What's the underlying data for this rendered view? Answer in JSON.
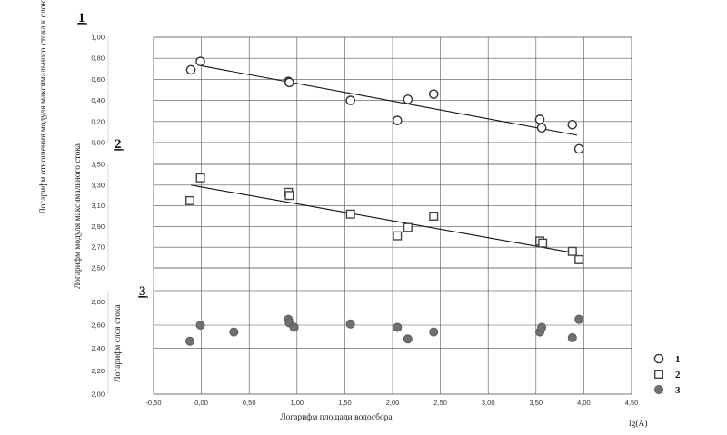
{
  "chart_data": {
    "type": "scatter",
    "xlabel": "Логарифм площади водосбора",
    "x_unit_label": "lg(A)",
    "xlim": [
      -0.5,
      4.5
    ],
    "x_ticks": [
      "-0,50",
      "0,00",
      "0,50",
      "1,00",
      "1,50",
      "2,00",
      "2,50",
      "3,00",
      "3,50",
      "4,00",
      "4,50"
    ],
    "grid": true,
    "legend_position": "bottom-right",
    "panels": [
      {
        "number": "1",
        "ylabel": "Логарифм отношения модуля максимального стока к слою стока",
        "ylim": [
          0,
          1
        ],
        "y_ticks": [
          "0,00",
          "0,20",
          "0,40",
          "0,60",
          "0,80",
          "1,00"
        ],
        "series": [
          {
            "marker": "circle-open",
            "points": [
              [
                -0.11,
                0.69
              ],
              [
                -0.01,
                0.77
              ],
              [
                0.91,
                0.58
              ],
              [
                0.92,
                0.57
              ],
              [
                1.56,
                0.4
              ],
              [
                2.05,
                0.21
              ],
              [
                2.16,
                0.41
              ],
              [
                2.43,
                0.46
              ],
              [
                3.54,
                0.22
              ],
              [
                3.56,
                0.14
              ],
              [
                3.88,
                0.17
              ],
              [
                3.95,
                -0.06
              ]
            ],
            "trend": [
              [
                -0.01,
                0.73
              ],
              [
                3.93,
                0.07
              ]
            ]
          }
        ]
      },
      {
        "number": "2",
        "ylabel": "Логарифм модуля максимального стока",
        "ylim": [
          2.5,
          3.5
        ],
        "y_ticks": [
          "2,50",
          "2,70",
          "2,90",
          "3,10",
          "3,30",
          "3,50"
        ],
        "series": [
          {
            "marker": "square-open",
            "points": [
              [
                -0.12,
                3.15
              ],
              [
                -0.01,
                3.37
              ],
              [
                0.91,
                3.23
              ],
              [
                0.92,
                3.2
              ],
              [
                1.56,
                3.02
              ],
              [
                2.05,
                2.81
              ],
              [
                2.16,
                2.89
              ],
              [
                2.43,
                3.0
              ],
              [
                3.54,
                2.76
              ],
              [
                3.57,
                2.74
              ],
              [
                3.88,
                2.66
              ],
              [
                3.95,
                2.58
              ]
            ],
            "trend": [
              [
                -0.11,
                3.3
              ],
              [
                3.93,
                2.64
              ]
            ]
          }
        ]
      },
      {
        "number": "3",
        "ylabel": "Логарифм слоя стока",
        "ylim": [
          2.0,
          2.9
        ],
        "y_ticks": [
          "2,00",
          "2,20",
          "2,40",
          "2,60",
          "2,80"
        ],
        "series": [
          {
            "marker": "circle-filled",
            "points": [
              [
                -0.12,
                2.46
              ],
              [
                -0.01,
                2.6
              ],
              [
                0.34,
                2.54
              ],
              [
                0.91,
                2.65
              ],
              [
                0.92,
                2.62
              ],
              [
                0.97,
                2.58
              ],
              [
                1.56,
                2.61
              ],
              [
                2.05,
                2.58
              ],
              [
                2.16,
                2.48
              ],
              [
                2.43,
                2.54
              ],
              [
                3.54,
                2.54
              ],
              [
                3.56,
                2.58
              ],
              [
                3.88,
                2.49
              ],
              [
                3.95,
                2.65
              ]
            ]
          }
        ]
      }
    ],
    "legend": [
      {
        "marker": "circle-open",
        "label": "1"
      },
      {
        "marker": "square-open",
        "label": "2"
      },
      {
        "marker": "circle-filled",
        "label": "3"
      }
    ]
  }
}
